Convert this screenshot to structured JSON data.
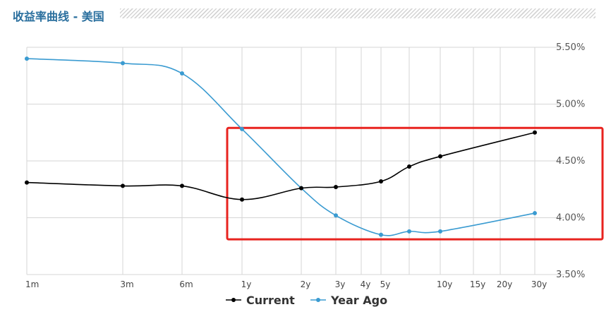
{
  "header": {
    "title": "收益率曲线 - 美国"
  },
  "chart_data": {
    "type": "line",
    "title": "收益率曲线 - 美国",
    "categories": [
      "1m",
      "3m",
      "6m",
      "1y",
      "2y",
      "3y",
      "4y",
      "5y",
      "7y",
      "10y",
      "15y",
      "20y",
      "30y"
    ],
    "x_tick_labels": [
      "1m",
      "3m",
      "6m",
      "1y",
      "2y",
      "3y",
      "4y",
      "5y",
      "10y",
      "15y",
      "20y",
      "30y"
    ],
    "y_tick_labels": [
      "5.50%",
      "5.00%",
      "4.50%",
      "4.00%",
      "3.50%"
    ],
    "ylim": [
      3.5,
      5.5
    ],
    "grid": true,
    "legend_position": "bottom-center",
    "y_axis_side": "right",
    "series": [
      {
        "name": "Current",
        "color": "#000000",
        "points": [
          {
            "x": "1m",
            "y": 4.31
          },
          {
            "x": "3m",
            "y": 4.28
          },
          {
            "x": "6m",
            "y": 4.28
          },
          {
            "x": "1y",
            "y": 4.16
          },
          {
            "x": "2y",
            "y": 4.26
          },
          {
            "x": "3y",
            "y": 4.27
          },
          {
            "x": "5y",
            "y": 4.32
          },
          {
            "x": "7y",
            "y": 4.45
          },
          {
            "x": "10y",
            "y": 4.54
          },
          {
            "x": "30y",
            "y": 4.75
          }
        ]
      },
      {
        "name": "Year Ago",
        "color": "#3a9bd1",
        "points": [
          {
            "x": "1m",
            "y": 5.4
          },
          {
            "x": "3m",
            "y": 5.36
          },
          {
            "x": "6m",
            "y": 5.27
          },
          {
            "x": "1y",
            "y": 4.78
          },
          {
            "x": "2y",
            "y": 4.26
          },
          {
            "x": "3y",
            "y": 4.02
          },
          {
            "x": "5y",
            "y": 3.85
          },
          {
            "x": "7y",
            "y": 3.88
          },
          {
            "x": "10y",
            "y": 3.88
          },
          {
            "x": "30y",
            "y": 4.04
          }
        ]
      }
    ],
    "highlight_box": {
      "color": "#e8231f",
      "x_range": [
        "1y",
        "30y"
      ],
      "y_range": [
        3.81,
        4.79
      ]
    }
  }
}
